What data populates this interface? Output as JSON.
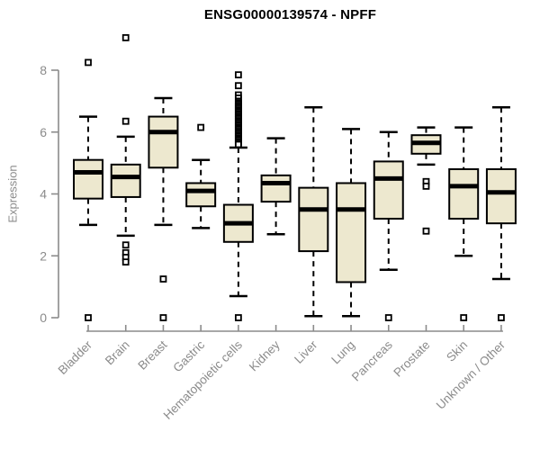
{
  "window": {
    "title": "ENSG00000139574 - NPFF"
  },
  "chart_data": {
    "type": "boxplot",
    "title": "ENSG00000139574 - NPFF",
    "xlabel": "",
    "ylabel": "Expression",
    "ylim": [
      0,
      8
    ],
    "yticks": [
      0,
      2,
      4,
      6,
      8
    ],
    "grid": false,
    "legend": "none",
    "colors": {
      "box_fill": "#EDE8CF",
      "box_border": "#000000",
      "median": "#000000",
      "whisker": "#000000",
      "outlier_fill": "#ffffff",
      "axis": "#8b8b8b",
      "tick_label": "#8b8b8b",
      "title": "#000000"
    },
    "categories": [
      "Bladder",
      "Brain",
      "Breast",
      "Gastric",
      "Hematopoietic cells",
      "Kidney",
      "Liver",
      "Lung",
      "Pancreas",
      "Prostate",
      "Skin",
      "Unknown / Other"
    ],
    "boxes": [
      {
        "category": "Bladder",
        "whisker_low": 3.0,
        "q1": 3.85,
        "median": 4.7,
        "q3": 5.1,
        "whisker_high": 6.5,
        "outliers": [
          8.25,
          0
        ]
      },
      {
        "category": "Brain",
        "whisker_low": 2.65,
        "q1": 3.9,
        "median": 4.55,
        "q3": 4.95,
        "whisker_high": 5.85,
        "outliers": [
          9.05,
          6.35,
          2.35,
          2.1,
          1.95,
          1.8
        ]
      },
      {
        "category": "Breast",
        "whisker_low": 3.0,
        "q1": 4.85,
        "median": 6.0,
        "q3": 6.5,
        "whisker_high": 7.1,
        "outliers": [
          1.25,
          0
        ]
      },
      {
        "category": "Gastric",
        "whisker_low": 2.9,
        "q1": 3.6,
        "median": 4.1,
        "q3": 4.35,
        "whisker_high": 5.1,
        "outliers": [
          6.15
        ]
      },
      {
        "category": "Hematopoietic cells",
        "whisker_low": 0.7,
        "q1": 2.45,
        "median": 3.05,
        "q3": 3.65,
        "whisker_high": 5.5,
        "outliers": [
          7.85,
          7.5,
          7.2,
          7.1,
          7.0,
          6.95,
          6.9,
          6.85,
          6.8,
          6.75,
          6.7,
          6.65,
          6.6,
          6.55,
          6.5,
          6.45,
          6.4,
          6.35,
          6.3,
          6.25,
          6.2,
          6.15,
          6.1,
          6.05,
          6.0,
          5.95,
          5.9,
          5.85,
          5.8,
          5.75,
          5.7,
          5.65,
          5.6,
          0
        ]
      },
      {
        "category": "Kidney",
        "whisker_low": 2.7,
        "q1": 3.75,
        "median": 4.35,
        "q3": 4.6,
        "whisker_high": 5.8,
        "outliers": []
      },
      {
        "category": "Liver",
        "whisker_low": 0.05,
        "q1": 2.15,
        "median": 3.5,
        "q3": 4.2,
        "whisker_high": 6.8,
        "outliers": []
      },
      {
        "category": "Lung",
        "whisker_low": 0.05,
        "q1": 1.15,
        "median": 3.5,
        "q3": 4.35,
        "whisker_high": 6.1,
        "outliers": []
      },
      {
        "category": "Pancreas",
        "whisker_low": 1.55,
        "q1": 3.2,
        "median": 4.5,
        "q3": 5.05,
        "whisker_high": 6.0,
        "outliers": [
          0
        ]
      },
      {
        "category": "Prostate",
        "whisker_low": 4.95,
        "q1": 5.3,
        "median": 5.65,
        "q3": 5.9,
        "whisker_high": 6.15,
        "outliers": [
          4.4,
          4.25,
          2.8
        ]
      },
      {
        "category": "Skin",
        "whisker_low": 2.0,
        "q1": 3.2,
        "median": 4.25,
        "q3": 4.8,
        "whisker_high": 6.15,
        "outliers": [
          0
        ]
      },
      {
        "category": "Unknown / Other",
        "whisker_low": 1.25,
        "q1": 3.05,
        "median": 4.05,
        "q3": 4.8,
        "whisker_high": 6.8,
        "outliers": [
          0
        ]
      }
    ]
  }
}
